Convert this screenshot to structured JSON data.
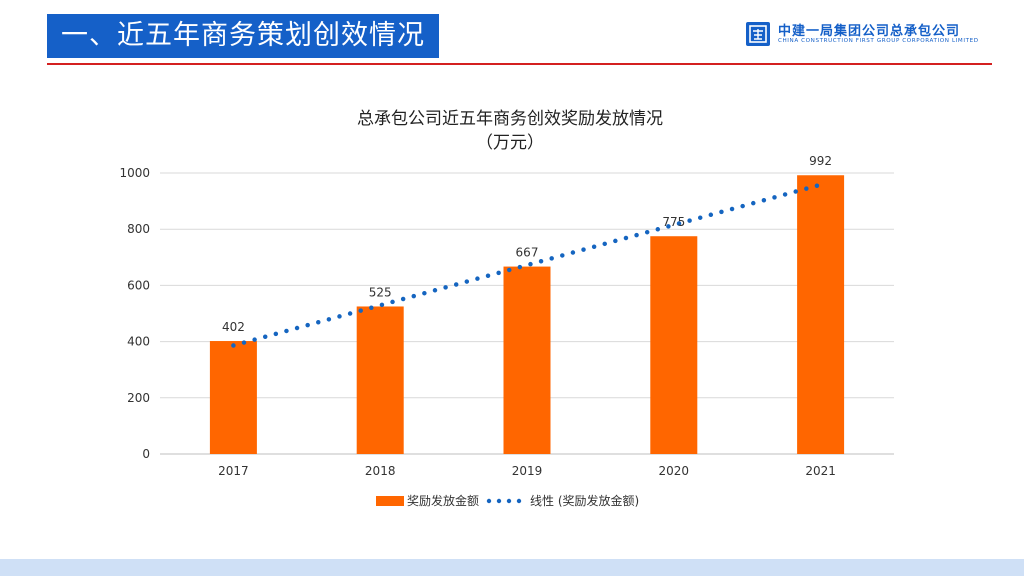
{
  "header": {
    "title": "一、近五年商务策划创效情况",
    "logo_cn": "中建一局集团公司总承包公司",
    "logo_en": "CHINA CONSTRUCTION FIRST GROUP CORPORATION LIMITED"
  },
  "colors": {
    "brand_blue": "#1560c8",
    "bar_orange": "#ff6600",
    "trend_blue": "#1565c0",
    "divider_red": "#d42020"
  },
  "chart_data": {
    "type": "bar",
    "title_line1": "总承包公司近五年商务创效奖励发放情况",
    "title_line2": "（万元）",
    "categories": [
      "2017",
      "2018",
      "2019",
      "2020",
      "2021"
    ],
    "series": [
      {
        "name": "奖励发放金额",
        "values": [
          402,
          525,
          667,
          775,
          992
        ]
      }
    ],
    "trendline": {
      "name": "线性 (奖励发放金额)",
      "type": "linear"
    },
    "ylim": [
      0,
      1000
    ],
    "yticks": [
      0,
      200,
      400,
      600,
      800,
      1000
    ],
    "grid": true,
    "legend": "bottom"
  }
}
